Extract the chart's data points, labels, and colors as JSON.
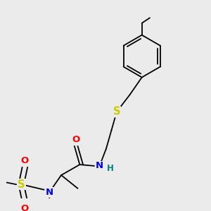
{
  "background_color": "#ebebeb",
  "bond_color": "#000000",
  "atom_colors": {
    "N": "#0000ee",
    "O": "#ff0000",
    "S": "#cccc00",
    "H": "#008080",
    "C": "#000000"
  },
  "font_size_atom": 8.5,
  "line_width": 1.3,
  "figsize": [
    3.0,
    3.0
  ],
  "dpi": 100
}
